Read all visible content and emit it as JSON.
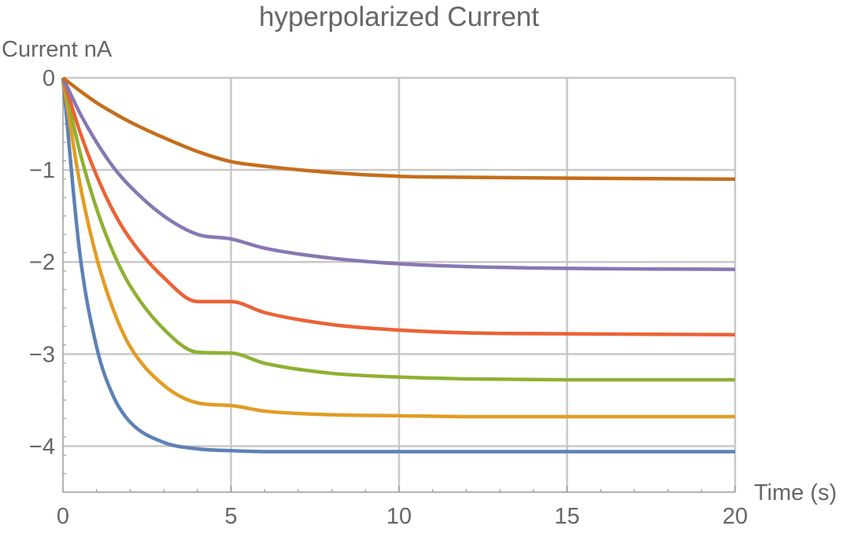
{
  "chart_data": {
    "type": "line",
    "title": "hyperpolarized Current",
    "xlabel": "Time (s)",
    "ylabel": "Current nA",
    "xlim": [
      0,
      20
    ],
    "ylim": [
      -4.5,
      0
    ],
    "x_ticks": [
      0,
      5,
      10,
      15,
      20
    ],
    "x_tick_labels": [
      "0",
      "5",
      "10",
      "15",
      "20"
    ],
    "y_ticks": [
      0,
      -1,
      -2,
      -3,
      -4
    ],
    "y_tick_labels": [
      "0",
      "−1",
      "−2",
      "−3",
      "−4"
    ],
    "grid": true,
    "x": [
      0,
      0.5,
      1,
      1.5,
      2,
      3,
      4,
      5,
      6,
      8,
      10,
      12,
      15,
      20
    ],
    "series": [
      {
        "color": "#5E81B5",
        "values": [
          0,
          -1.9,
          -2.92,
          -3.46,
          -3.74,
          -3.96,
          -4.03,
          -4.05,
          -4.06,
          -4.06,
          -4.06,
          -4.06,
          -4.06,
          -4.06
        ]
      },
      {
        "color": "#E19C24",
        "values": [
          0,
          -1.14,
          -1.95,
          -2.52,
          -2.92,
          -3.34,
          -3.53,
          -3.56,
          -3.62,
          -3.66,
          -3.67,
          -3.68,
          -3.68,
          -3.68
        ]
      },
      {
        "color": "#8FB032",
        "values": [
          0,
          -0.8,
          -1.42,
          -1.9,
          -2.26,
          -2.73,
          -2.98,
          -2.99,
          -3.1,
          -3.21,
          -3.25,
          -3.27,
          -3.28,
          -3.28
        ]
      },
      {
        "color": "#EB6235",
        "values": [
          0,
          -0.58,
          -1.06,
          -1.45,
          -1.75,
          -2.17,
          -2.43,
          -2.43,
          -2.55,
          -2.68,
          -2.74,
          -2.77,
          -2.78,
          -2.79
        ]
      },
      {
        "color": "#8778B3",
        "values": [
          0,
          -0.38,
          -0.7,
          -0.97,
          -1.18,
          -1.5,
          -1.7,
          -1.75,
          -1.85,
          -1.96,
          -2.02,
          -2.05,
          -2.07,
          -2.08
        ]
      },
      {
        "color": "#C56E1A",
        "values": [
          0,
          -0.14,
          -0.27,
          -0.38,
          -0.48,
          -0.65,
          -0.8,
          -0.91,
          -0.96,
          -1.03,
          -1.07,
          -1.08,
          -1.09,
          -1.1
        ]
      }
    ]
  }
}
